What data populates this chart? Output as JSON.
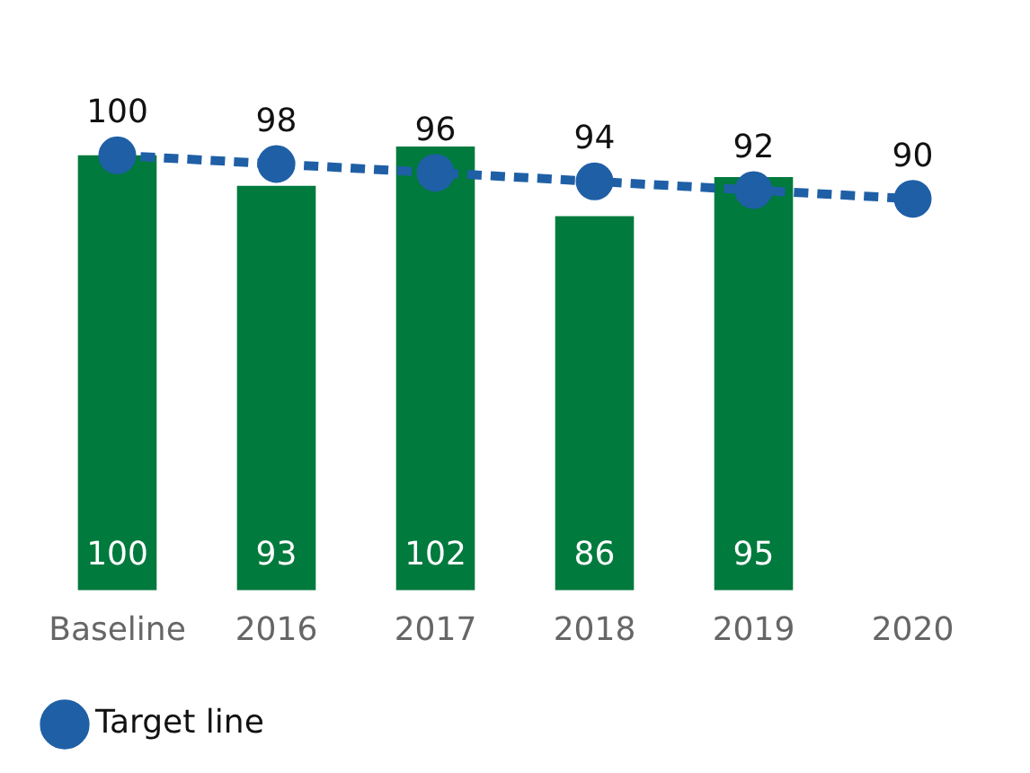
{
  "chart_data": {
    "type": "bar",
    "categories": [
      "Baseline",
      "2016",
      "2017",
      "2018",
      "2019",
      "2020"
    ],
    "series": [
      {
        "color": "#007a3d",
        "values": [
          100,
          93,
          102,
          86,
          95,
          null
        ]
      },
      {
        "type": "line",
        "name": "Target line",
        "color": "#1f5fa6",
        "values": [
          100,
          98,
          96,
          94,
          92,
          90
        ],
        "marker": "circle",
        "line_style": "dashed"
      }
    ],
    "data_labels": true,
    "legend": "bottom left",
    "grid": false
  }
}
